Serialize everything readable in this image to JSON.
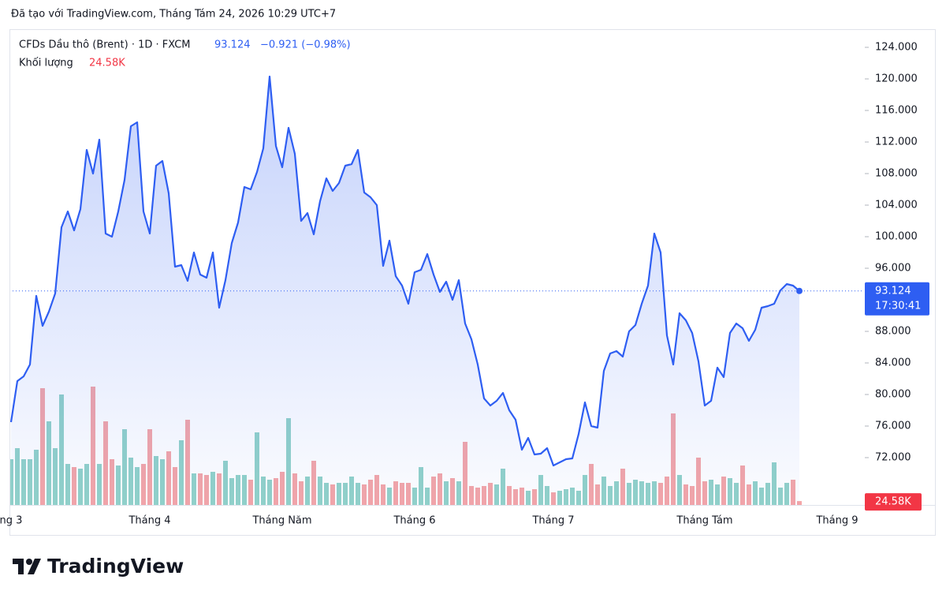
{
  "credit": "Đã tạo với TradingView.com, Tháng Tám 24, 2026 10:29 UTC+7",
  "brand": "TradingView",
  "chart_data": {
    "type": "line",
    "symbol": "CFDs Dầu thô (Brent) · 1D · FXCM",
    "last_label": "93.124",
    "change_label": "−0.921 (−0.98%)",
    "volume_label": "Khối lượng",
    "countdown": "17:30:41",
    "categories": [
      "ng 3",
      null,
      null,
      null,
      null,
      null,
      null,
      null,
      null,
      null,
      null,
      null,
      null,
      null,
      null,
      null,
      null,
      null,
      null,
      null,
      null,
      null,
      "Tháng 4",
      null,
      null,
      null,
      null,
      null,
      null,
      null,
      null,
      null,
      null,
      null,
      null,
      null,
      null,
      null,
      null,
      null,
      null,
      null,
      null,
      "Tháng Năm",
      null,
      null,
      null,
      null,
      null,
      null,
      null,
      null,
      null,
      null,
      null,
      null,
      null,
      null,
      null,
      null,
      null,
      null,
      null,
      null,
      "Tháng 6",
      null,
      null,
      null,
      null,
      null,
      null,
      null,
      null,
      null,
      null,
      null,
      null,
      null,
      null,
      null,
      null,
      null,
      null,
      null,
      null,
      null,
      "Tháng 7",
      null,
      null,
      null,
      null,
      null,
      null,
      null,
      null,
      null,
      null,
      null,
      null,
      null,
      null,
      null,
      null,
      null,
      null,
      null,
      null,
      null,
      null,
      null,
      "Tháng Tám",
      null,
      null,
      null,
      null,
      null,
      null,
      null,
      null,
      null,
      null,
      null,
      null,
      null,
      null,
      null,
      null,
      null,
      null,
      null,
      null,
      "Tháng 9"
    ],
    "series": [
      {
        "name": "Brent",
        "color": "#2e5ef2",
        "values": [
          76.5,
          81.7,
          82.3,
          83.8,
          92.5,
          88.7,
          90.5,
          92.8,
          101.2,
          103.2,
          100.8,
          103.5,
          111,
          108,
          112.3,
          100.4,
          100,
          103.2,
          107.2,
          114,
          114.5,
          103.2,
          100.4,
          109,
          109.6,
          105.5,
          96.2,
          96.4,
          94.4,
          98,
          95.2,
          94.8,
          98,
          91,
          94.5,
          99.2,
          101.8,
          106.3,
          106,
          108.2,
          111.2,
          120.3,
          111.5,
          108.8,
          113.8,
          110.5,
          102,
          103,
          100.3,
          104.5,
          107.4,
          105.8,
          106.8,
          109,
          109.2,
          111,
          105.6,
          105,
          104,
          96.3,
          99.5,
          95,
          93.8,
          91.5,
          95.5,
          95.8,
          97.8,
          95.2,
          93,
          94.3,
          92,
          94.5,
          89,
          87,
          83.8,
          79.5,
          78.6,
          79.2,
          80.2,
          78,
          76.8,
          73,
          74.5,
          72.4,
          72.5,
          73.2,
          71,
          71.4,
          71.8,
          71.9,
          75,
          79,
          76,
          75.8,
          83,
          85.2,
          85.5,
          84.8,
          88,
          88.8,
          91.5,
          93.8,
          100.4,
          98,
          87.5,
          83.8,
          90.3,
          89.4,
          87.8,
          84.2,
          78.6,
          79.2,
          83.4,
          82.2,
          87.8,
          89,
          88.4,
          86.8,
          88.2,
          91,
          91.2,
          91.5,
          93.2,
          94,
          93.8,
          93.124,
          null,
          null,
          null,
          null,
          null,
          null
        ]
      },
      {
        "name": "Khối lượng",
        "axis": "y2",
        "up_color": "#92d2c9",
        "down_color": "#f4a6a8",
        "values": [
          290000,
          360000,
          290000,
          290000,
          350000,
          740000,
          530000,
          360000,
          700000,
          260000,
          240000,
          230000,
          260000,
          750000,
          260000,
          530000,
          290000,
          250000,
          480000,
          300000,
          240000,
          260000,
          480000,
          310000,
          290000,
          340000,
          240000,
          410000,
          540000,
          200000,
          200000,
          190000,
          210000,
          200000,
          280000,
          170000,
          190000,
          190000,
          160000,
          460000,
          180000,
          160000,
          170000,
          210000,
          550000,
          200000,
          150000,
          180000,
          280000,
          180000,
          140000,
          130000,
          140000,
          140000,
          180000,
          140000,
          130000,
          160000,
          190000,
          130000,
          110000,
          150000,
          140000,
          140000,
          110000,
          240000,
          110000,
          180000,
          200000,
          150000,
          170000,
          150000,
          400000,
          120000,
          110000,
          120000,
          140000,
          130000,
          230000,
          120000,
          100000,
          110000,
          90000,
          100000,
          190000,
          120000,
          80000,
          90000,
          100000,
          110000,
          90000,
          190000,
          260000,
          130000,
          180000,
          120000,
          150000,
          230000,
          140000,
          160000,
          150000,
          140000,
          150000,
          140000,
          180000,
          580000,
          190000,
          130000,
          120000,
          300000,
          150000,
          160000,
          130000,
          180000,
          170000,
          140000,
          250000,
          130000,
          150000,
          110000,
          140000,
          270000,
          110000,
          140000,
          160000,
          24580,
          null,
          null,
          null,
          null,
          null,
          null
        ],
        "value_labels": [
          null,
          null,
          null,
          null,
          null,
          null,
          null,
          null,
          null,
          null,
          null,
          null,
          null,
          null,
          null,
          null,
          null,
          null,
          null,
          null,
          null,
          null,
          null,
          null,
          null,
          null,
          null,
          null,
          null,
          null,
          null,
          null,
          null,
          null,
          null,
          null,
          null,
          null,
          null,
          null,
          null,
          null,
          null,
          null,
          null,
          null,
          null,
          null,
          null,
          null,
          null,
          null,
          null,
          null,
          null,
          null,
          null,
          null,
          null,
          null,
          null,
          null,
          null,
          null,
          null,
          null,
          null,
          null,
          null,
          null,
          null,
          null,
          null,
          null,
          null,
          null,
          null,
          null,
          null,
          null,
          null,
          null,
          null,
          null,
          null,
          null,
          null,
          null,
          null,
          null,
          null,
          null,
          null,
          null,
          null,
          null,
          null,
          null,
          null,
          null,
          null,
          null,
          null,
          null,
          null,
          null,
          null,
          null,
          null,
          null,
          null,
          null,
          null,
          null,
          null,
          null,
          null,
          null,
          null,
          null,
          null,
          null,
          null,
          null,
          null,
          "24.58K",
          null,
          null,
          null,
          null,
          null,
          null
        ]
      }
    ],
    "ylim": [
      66,
      126
    ],
    "yticks": [
      {
        "value": 72,
        "label": "72.000"
      },
      {
        "value": 76,
        "label": "76.000"
      },
      {
        "value": 80,
        "label": "80.000"
      },
      {
        "value": 84,
        "label": "84.000"
      },
      {
        "value": 88,
        "label": "88.000"
      },
      {
        "value": 92,
        "label": "92.000"
      },
      {
        "value": 96,
        "label": "96.000"
      },
      {
        "value": 100,
        "label": "100.000"
      },
      {
        "value": 104,
        "label": "104.000"
      },
      {
        "value": 108,
        "label": "108.000"
      },
      {
        "value": 112,
        "label": "112.000"
      },
      {
        "value": 116,
        "label": "116.000"
      },
      {
        "value": 120,
        "label": "120.000"
      },
      {
        "value": 124,
        "label": "124.000"
      }
    ],
    "y2lim": [
      0,
      3000000
    ],
    "grid": false
  }
}
